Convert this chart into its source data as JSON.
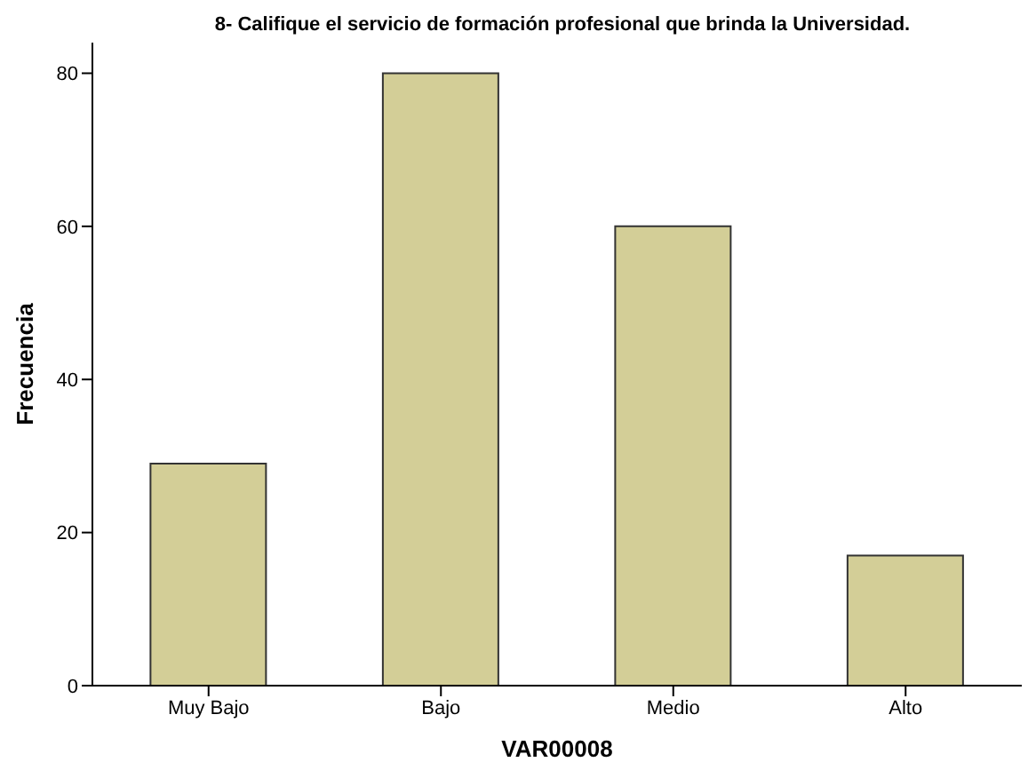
{
  "chart_data": {
    "type": "bar",
    "title": "8- Califique el servicio de formación profesional que brinda la Universidad.",
    "xlabel": "VAR00008",
    "ylabel": "Frecuencia",
    "categories": [
      "Muy Bajo",
      "Bajo",
      "Medio",
      "Alto"
    ],
    "values": [
      29,
      80,
      60,
      17
    ],
    "color": "#d3ce97",
    "ylim": [
      0,
      84
    ],
    "yticks": [
      0,
      20,
      40,
      60,
      80
    ],
    "grid": false,
    "legend": false
  }
}
